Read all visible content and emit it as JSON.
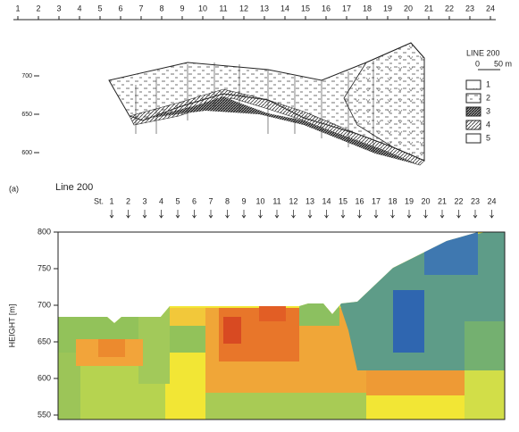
{
  "top": {
    "stations": [
      "1",
      "2",
      "3",
      "4",
      "5",
      "6",
      "7",
      "8",
      "9",
      "10",
      "11",
      "12",
      "13",
      "14",
      "15",
      "16",
      "17",
      "18",
      "19",
      "20",
      "21",
      "22",
      "23",
      "24"
    ],
    "elevation_ticks": [
      "700",
      "650",
      "600"
    ],
    "legend": {
      "title": "LINE 200",
      "scale": [
        "0",
        "50 m"
      ],
      "items": [
        "1",
        "2",
        "3",
        "4",
        "5"
      ]
    }
  },
  "bottom": {
    "panel_label": "(a)",
    "title": "Line 200",
    "station_prefix": "St.",
    "stations": [
      "1",
      "2",
      "3",
      "4",
      "5",
      "6",
      "7",
      "8",
      "9",
      "10",
      "11",
      "12",
      "13",
      "14",
      "15",
      "16",
      "17",
      "18",
      "19",
      "20",
      "21",
      "22",
      "23",
      "24"
    ],
    "y_axis_label": "HEIGHT [m]",
    "yticks": [
      "800",
      "750",
      "700",
      "650",
      "600",
      "550"
    ]
  }
}
